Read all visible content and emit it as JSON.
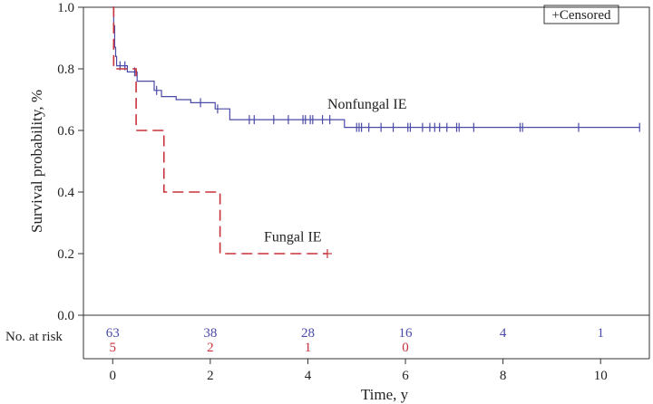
{
  "chart_data": {
    "type": "line",
    "subtype": "kaplan-meier",
    "xlabel": "Time, y",
    "ylabel": "Survival probability, %",
    "xlim": [
      -0.6,
      11
    ],
    "ylim": [
      0,
      1
    ],
    "x_ticks": [
      0,
      2,
      4,
      6,
      8,
      10
    ],
    "y_ticks": [
      0.0,
      0.2,
      0.4,
      0.6,
      0.8,
      1.0
    ],
    "x_tick_labels": [
      "0",
      "2",
      "4",
      "6",
      "8",
      "10"
    ],
    "y_tick_labels": [
      "0.0",
      "0.2",
      "0.4",
      "0.6",
      "0.8",
      "1.0"
    ],
    "grid": false,
    "legend_text": "+Censored",
    "legend_position": "top-right",
    "series": [
      {
        "name": "Nonfungal IE",
        "color": "#4a4aa8",
        "dash": "solid",
        "steps": [
          [
            0,
            1.0
          ],
          [
            0.02,
            0.94
          ],
          [
            0.04,
            0.87
          ],
          [
            0.06,
            0.84
          ],
          [
            0.08,
            0.81
          ],
          [
            0.3,
            0.79
          ],
          [
            0.5,
            0.76
          ],
          [
            0.85,
            0.73
          ],
          [
            1.0,
            0.71
          ],
          [
            1.3,
            0.7
          ],
          [
            1.6,
            0.69
          ],
          [
            2.1,
            0.67
          ],
          [
            2.4,
            0.635
          ],
          [
            4.75,
            0.61
          ],
          [
            10.8,
            0.61
          ]
        ],
        "censored": [
          0.15,
          0.25,
          0.45,
          0.9,
          1.8,
          2.15,
          2.8,
          2.9,
          3.3,
          3.6,
          3.9,
          3.95,
          4.05,
          4.1,
          4.3,
          4.45,
          5.0,
          5.05,
          5.1,
          5.25,
          5.5,
          5.75,
          6.05,
          6.1,
          6.35,
          6.5,
          6.6,
          6.7,
          6.85,
          7.05,
          7.1,
          7.4,
          8.35,
          8.4,
          9.55,
          10.8
        ],
        "label": "Nonfungal IE",
        "label_at": [
          4.4,
          0.67
        ]
      },
      {
        "name": "Fungal IE",
        "color": "#c8323c",
        "dash": "dashed",
        "steps": [
          [
            0,
            1.0
          ],
          [
            0.02,
            0.8
          ],
          [
            0.48,
            0.6
          ],
          [
            1.05,
            0.4
          ],
          [
            2.2,
            0.2
          ],
          [
            4.4,
            0.2
          ]
        ],
        "censored": [
          4.4
        ],
        "label": "Fungal IE",
        "label_at": [
          3.1,
          0.24
        ]
      }
    ],
    "risk_table": {
      "label": "No. at risk",
      "times": [
        0,
        2,
        4,
        6,
        8,
        10
      ],
      "rows": [
        {
          "series": "Nonfungal IE",
          "color": "#4a4aa8",
          "values": [
            "63",
            "38",
            "28",
            "16",
            "4",
            "1"
          ]
        },
        {
          "series": "Fungal IE",
          "color": "#c8323c",
          "values": [
            "5",
            "2",
            "1",
            "0",
            "",
            ""
          ]
        }
      ]
    }
  }
}
